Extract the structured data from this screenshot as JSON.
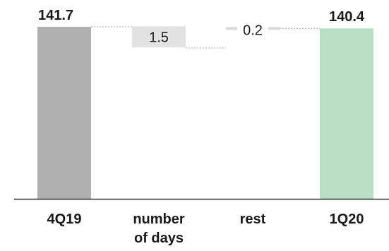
{
  "chart_data": {
    "type": "bar",
    "subtype": "waterfall",
    "title": "",
    "xlabel": "",
    "ylabel": "",
    "categories": [
      "4Q19",
      "number of days",
      "rest",
      "1Q20"
    ],
    "category_lines": [
      [
        "4Q19"
      ],
      [
        "number",
        "of days"
      ],
      [
        "rest"
      ],
      [
        "1Q20"
      ]
    ],
    "bars": [
      {
        "category": "4Q19",
        "kind": "total",
        "value": 141.7,
        "label": "141.7",
        "label_bold": true,
        "color": "#b0b0b0"
      },
      {
        "category": "number of days",
        "kind": "delta",
        "value": -1.5,
        "label": "1.5",
        "label_bold": false,
        "color": "#e2e2e2"
      },
      {
        "category": "rest",
        "kind": "delta",
        "value": 0.2,
        "label": "0.2",
        "label_bold": false,
        "color": "#d9d9d9"
      },
      {
        "category": "1Q20",
        "kind": "total",
        "value": 140.4,
        "label": "140.4",
        "label_bold": true,
        "color": "#b9e0c5"
      }
    ],
    "ylim": [
      0,
      141.7
    ],
    "axis_color": "#333333",
    "connector_color": "#a0a0a0",
    "grid": false,
    "legend": "none"
  }
}
